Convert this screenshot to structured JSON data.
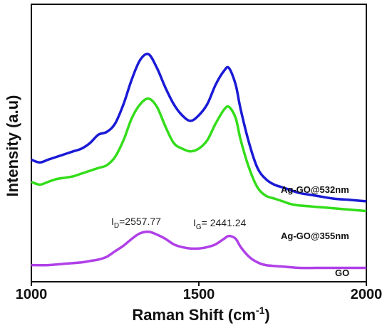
{
  "chart_data": {
    "type": "line",
    "title": "",
    "xlabel": "Raman Shift (cm",
    "xlabel_sup": "-1",
    "xlabel_end": ")",
    "ylabel": "Intensity (a.u)",
    "xlim": [
      1000,
      2000
    ],
    "ylim": [
      0,
      100
    ],
    "xticks": [
      1000,
      1500,
      2000
    ],
    "y_tick_labels": false,
    "grid": false,
    "series": [
      {
        "name": "Ag-GO@532nm",
        "color": "#1a1ad6",
        "x": [
          1000,
          1025,
          1050,
          1075,
          1100,
          1125,
          1150,
          1175,
          1200,
          1225,
          1250,
          1275,
          1300,
          1325,
          1350,
          1375,
          1400,
          1425,
          1450,
          1475,
          1500,
          1525,
          1550,
          1575,
          1590,
          1610,
          1625,
          1650,
          1675,
          1700,
          1725,
          1750,
          1775,
          1800,
          1850,
          1900,
          1950,
          2000
        ],
        "values": [
          44,
          43,
          44,
          45,
          46,
          47,
          48,
          50,
          53,
          54,
          57,
          64,
          73,
          80,
          82,
          77,
          70,
          64,
          60,
          58,
          60,
          64,
          71,
          76,
          77,
          71,
          62,
          50,
          41,
          37,
          35,
          34,
          33,
          32,
          31,
          30,
          29.5,
          29
        ]
      },
      {
        "name": "Ag-GO@355nm",
        "color": "#33dd1a",
        "x": [
          1000,
          1025,
          1050,
          1075,
          1100,
          1125,
          1150,
          1175,
          1200,
          1225,
          1250,
          1275,
          1300,
          1325,
          1350,
          1375,
          1400,
          1425,
          1450,
          1475,
          1500,
          1525,
          1550,
          1575,
          1590,
          1610,
          1625,
          1650,
          1675,
          1700,
          1725,
          1750,
          1775,
          1800,
          1850,
          1900,
          1950,
          2000
        ],
        "values": [
          36,
          35,
          36,
          37,
          37.5,
          38,
          39,
          40,
          41,
          42,
          45,
          51,
          59,
          64,
          66,
          63,
          56,
          50,
          48,
          47,
          48,
          51,
          57,
          62,
          63,
          59,
          51,
          41,
          34,
          31,
          30,
          29,
          28,
          27.5,
          27,
          26.5,
          26,
          25.5
        ]
      },
      {
        "name": "GO",
        "color": "#b040e8",
        "x": [
          1000,
          1050,
          1100,
          1150,
          1175,
          1200,
          1225,
          1250,
          1275,
          1300,
          1325,
          1350,
          1375,
          1400,
          1425,
          1450,
          1475,
          1500,
          1525,
          1550,
          1575,
          1590,
          1610,
          1625,
          1650,
          1675,
          1700,
          1750,
          1800,
          1850,
          1900,
          1950,
          2000
        ],
        "values": [
          6,
          6,
          6.5,
          7,
          7.5,
          8,
          9,
          11,
          13,
          15.5,
          17.5,
          18,
          17,
          15.5,
          13.5,
          12.5,
          12,
          12,
          12.5,
          13.5,
          15.5,
          16.5,
          15.5,
          12.5,
          9,
          7,
          6,
          5.5,
          5,
          5,
          5,
          5,
          5
        ]
      }
    ],
    "annotations": [
      {
        "text_main": "I",
        "text_sub": "D",
        "text_rest": "=2557.77"
      },
      {
        "text_main": "I",
        "text_sub": "G",
        "text_rest": "= 2441.24"
      }
    ]
  }
}
